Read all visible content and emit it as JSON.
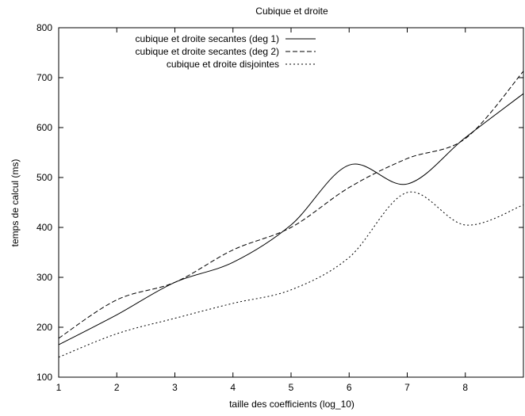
{
  "chart_data": {
    "type": "line",
    "title": "Cubique et droite",
    "xlabel": "taille des coefficients (log_10)",
    "ylabel": "temps de calcul (ms)",
    "xlim": [
      1,
      9
    ],
    "ylim": [
      100,
      800
    ],
    "xticks": [
      "1",
      "2",
      "3",
      "4",
      "5",
      "6",
      "7",
      "8"
    ],
    "yticks": [
      "100",
      "200",
      "300",
      "400",
      "500",
      "600",
      "700",
      "800"
    ],
    "grid": false,
    "legend_position": "top-right",
    "series": [
      {
        "name": "cubique et droite secantes (deg 1)",
        "style": "solid",
        "x": [
          1,
          2,
          3,
          4,
          5,
          6,
          7,
          8,
          9
        ],
        "y": [
          165,
          225,
          290,
          330,
          405,
          525,
          487,
          580,
          668
        ]
      },
      {
        "name": "cubique et droite secantes (deg 2)",
        "style": "dashed",
        "x": [
          1,
          2,
          3,
          4,
          5,
          6,
          7,
          8,
          9
        ],
        "y": [
          178,
          255,
          290,
          355,
          400,
          480,
          538,
          578,
          713
        ]
      },
      {
        "name": "cubique et droite disjointes",
        "style": "dotted",
        "x": [
          1,
          2,
          3,
          4,
          5,
          6,
          7,
          8,
          9
        ],
        "y": [
          140,
          187,
          218,
          248,
          275,
          340,
          470,
          405,
          445
        ]
      }
    ]
  }
}
